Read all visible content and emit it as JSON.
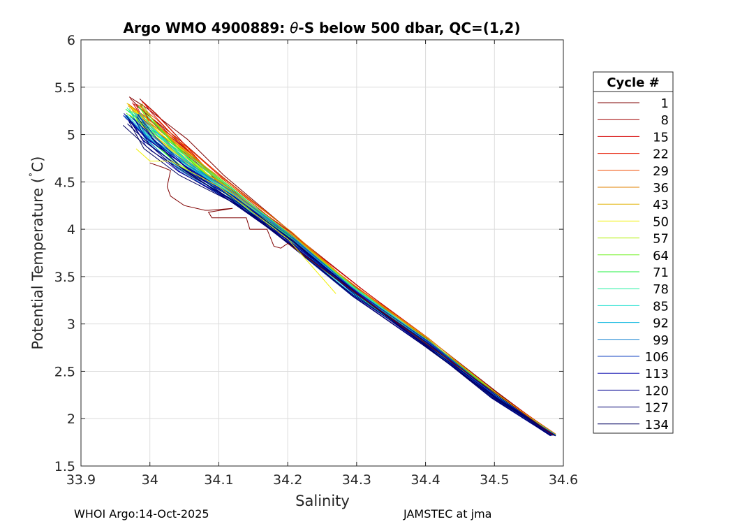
{
  "chart_data": {
    "type": "line",
    "title_prefix": "Argo WMO 4900889: ",
    "title_theta": "θ",
    "title_suffix": "-S below 500 dbar,  QC=(1,2)",
    "xlabel": "Salinity",
    "ylabel_main": "Potential Temperature (",
    "ylabel_deg": "˚",
    "ylabel_unit": "C)",
    "xlim": [
      33.9,
      34.6
    ],
    "ylim": [
      1.5,
      6
    ],
    "xticks": [
      "33.9",
      "34",
      "34.1",
      "34.2",
      "34.3",
      "34.4",
      "34.5",
      "34.6"
    ],
    "yticks": [
      "1.5",
      "2",
      "2.5",
      "3",
      "3.5",
      "4",
      "4.5",
      "5",
      "5.5",
      "6"
    ],
    "grid": true,
    "legend_title": "Cycle #",
    "legend_position": "outside-right",
    "legend_entries": [
      "1",
      "8",
      "15",
      "22",
      "29",
      "36",
      "43",
      "50",
      "57",
      "64",
      "71",
      "78",
      "85",
      "92",
      "99",
      "106",
      "113",
      "120",
      "127",
      "134"
    ],
    "legend_colors": [
      "#7f0000",
      "#a00000",
      "#d40000",
      "#e61a00",
      "#f04a00",
      "#e08000",
      "#e0b000",
      "#f0f000",
      "#b0f000",
      "#70f020",
      "#20f040",
      "#20f0a0",
      "#20e0d0",
      "#10b8e0",
      "#1080d0",
      "#1040c0",
      "#1010b0",
      "#000090",
      "#000070",
      "#000060"
    ],
    "series_note_colors": "cycles 1..134 colored red→blue",
    "main_curve": [
      [
        34.585,
        1.82
      ],
      [
        34.5,
        2.22
      ],
      [
        34.4,
        2.78
      ],
      [
        34.3,
        3.3
      ],
      [
        34.2,
        3.88
      ],
      [
        34.12,
        4.3
      ],
      [
        34.05,
        4.6
      ],
      [
        34.0,
        4.88
      ],
      [
        33.97,
        5.15
      ]
    ],
    "red_curve": [
      [
        34.585,
        1.84
      ],
      [
        34.5,
        2.28
      ],
      [
        34.4,
        2.85
      ],
      [
        34.3,
        3.38
      ],
      [
        34.2,
        3.98
      ],
      [
        34.1,
        4.55
      ],
      [
        34.05,
        4.92
      ],
      [
        34.0,
        5.25
      ],
      [
        33.98,
        5.38
      ]
    ],
    "cycle1_curve": [
      [
        34.585,
        1.83
      ],
      [
        34.3,
        3.32
      ],
      [
        34.2,
        3.85
      ],
      [
        34.19,
        3.8
      ],
      [
        34.18,
        3.82
      ],
      [
        34.17,
        4.0
      ],
      [
        34.145,
        4.0
      ],
      [
        34.14,
        4.12
      ],
      [
        34.09,
        4.12
      ],
      [
        34.085,
        4.18
      ],
      [
        34.12,
        4.22
      ],
      [
        34.085,
        4.2
      ],
      [
        34.08,
        4.2
      ],
      [
        34.05,
        4.25
      ],
      [
        34.03,
        4.35
      ],
      [
        34.025,
        4.45
      ],
      [
        34.03,
        4.62
      ],
      [
        34.02,
        4.65
      ],
      [
        34.0,
        4.7
      ]
    ],
    "cycle50_curve": [
      [
        34.27,
        3.32
      ],
      [
        34.2,
        3.9
      ],
      [
        34.1,
        4.45
      ],
      [
        34.03,
        4.72
      ],
      [
        34.0,
        4.72
      ],
      [
        33.98,
        4.85
      ]
    ],
    "footer_left": "WHOI Argo:14-Oct-2025",
    "footer_right": "JAMSTEC at jma"
  }
}
